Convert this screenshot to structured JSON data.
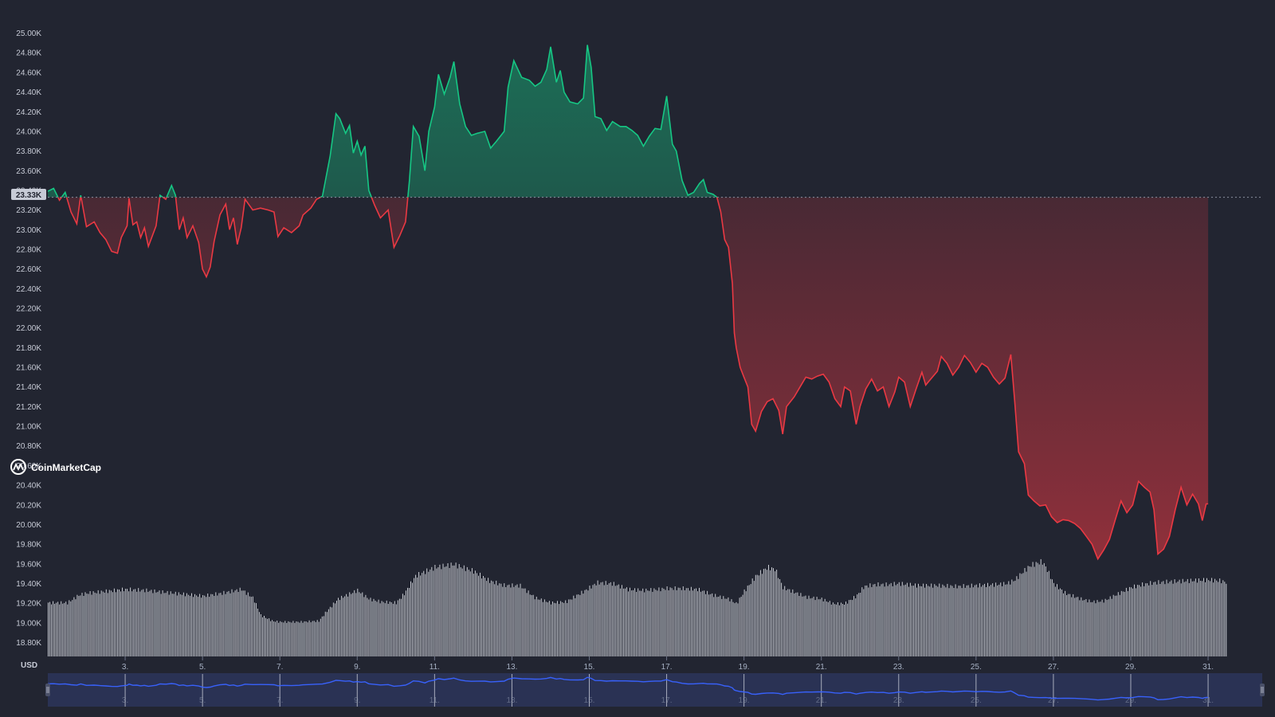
{
  "brand": {
    "watermark": "CoinMarketCap",
    "logo_icon": "coinmarketcap-logo-icon"
  },
  "colors": {
    "background": "#222531",
    "up": "#16c784",
    "down": "#ea3943",
    "volume": "#e9ecf2",
    "navigator_line": "#3861fb",
    "navigator_bg": "#2b3459"
  },
  "chart_data": {
    "type": "area",
    "currency_label": "USD",
    "current_price_label": "23.33K",
    "baseline": 23330,
    "ylim": [
      18650,
      25110
    ],
    "y_tick_labels": [
      "25.00K",
      "24.80K",
      "24.60K",
      "24.40K",
      "24.20K",
      "24.00K",
      "23.80K",
      "23.60K",
      "23.40K",
      "23.20K",
      "23.00K",
      "22.80K",
      "22.60K",
      "22.40K",
      "22.20K",
      "22.00K",
      "21.80K",
      "21.60K",
      "21.40K",
      "21.20K",
      "21.00K",
      "20.80K",
      "20.60K",
      "20.40K",
      "20.20K",
      "20.00K",
      "19.80K",
      "19.60K",
      "19.40K",
      "19.20K",
      "19.00K",
      "18.80K"
    ],
    "x_range": [
      1,
      32.4
    ],
    "x_tick_labels": [
      "3.",
      "5.",
      "7.",
      "9.",
      "11.",
      "13.",
      "15.",
      "17.",
      "19.",
      "21.",
      "23.",
      "25.",
      "27.",
      "29.",
      "31."
    ],
    "x_tick_values": [
      3,
      5,
      7,
      9,
      11,
      13,
      15,
      17,
      19,
      21,
      23,
      25,
      27,
      29,
      31
    ],
    "grid": false,
    "series": [
      {
        "values": [
          [
            1.0,
            23390
          ],
          [
            1.15,
            23420
          ],
          [
            1.3,
            23300
          ],
          [
            1.45,
            23380
          ],
          [
            1.6,
            23180
          ],
          [
            1.75,
            23060
          ],
          [
            1.85,
            23350
          ],
          [
            2.0,
            23030
          ],
          [
            2.2,
            23080
          ],
          [
            2.35,
            22970
          ],
          [
            2.5,
            22900
          ],
          [
            2.65,
            22780
          ],
          [
            2.8,
            22760
          ],
          [
            2.9,
            22920
          ],
          [
            3.05,
            23040
          ],
          [
            3.1,
            23320
          ],
          [
            3.2,
            23050
          ],
          [
            3.3,
            23080
          ],
          [
            3.4,
            22920
          ],
          [
            3.5,
            23020
          ],
          [
            3.6,
            22830
          ],
          [
            3.8,
            23040
          ],
          [
            3.9,
            23350
          ],
          [
            4.05,
            23310
          ],
          [
            4.2,
            23450
          ],
          [
            4.3,
            23350
          ],
          [
            4.4,
            23000
          ],
          [
            4.5,
            23120
          ],
          [
            4.6,
            22920
          ],
          [
            4.75,
            23040
          ],
          [
            4.9,
            22870
          ],
          [
            5.0,
            22600
          ],
          [
            5.1,
            22520
          ],
          [
            5.2,
            22620
          ],
          [
            5.3,
            22880
          ],
          [
            5.45,
            23150
          ],
          [
            5.6,
            23260
          ],
          [
            5.7,
            23000
          ],
          [
            5.8,
            23120
          ],
          [
            5.9,
            22850
          ],
          [
            6.0,
            23020
          ],
          [
            6.1,
            23310
          ],
          [
            6.3,
            23200
          ],
          [
            6.5,
            23220
          ],
          [
            6.7,
            23200
          ],
          [
            6.85,
            23180
          ],
          [
            6.95,
            22930
          ],
          [
            7.1,
            23020
          ],
          [
            7.3,
            22970
          ],
          [
            7.5,
            23040
          ],
          [
            7.6,
            23150
          ],
          [
            7.8,
            23220
          ],
          [
            7.95,
            23310
          ],
          [
            8.1,
            23340
          ],
          [
            8.3,
            23750
          ],
          [
            8.45,
            24180
          ],
          [
            8.55,
            24130
          ],
          [
            8.7,
            23980
          ],
          [
            8.8,
            24060
          ],
          [
            8.9,
            23780
          ],
          [
            9.0,
            23900
          ],
          [
            9.1,
            23760
          ],
          [
            9.2,
            23850
          ],
          [
            9.3,
            23400
          ],
          [
            9.45,
            23250
          ],
          [
            9.6,
            23120
          ],
          [
            9.8,
            23200
          ],
          [
            9.95,
            22820
          ],
          [
            10.1,
            22940
          ],
          [
            10.25,
            23080
          ],
          [
            10.35,
            23500
          ],
          [
            10.45,
            24050
          ],
          [
            10.6,
            23950
          ],
          [
            10.75,
            23600
          ],
          [
            10.85,
            24000
          ],
          [
            11.0,
            24250
          ],
          [
            11.1,
            24580
          ],
          [
            11.25,
            24380
          ],
          [
            11.4,
            24550
          ],
          [
            11.5,
            24710
          ],
          [
            11.65,
            24280
          ],
          [
            11.8,
            24050
          ],
          [
            11.95,
            23960
          ],
          [
            12.1,
            23980
          ],
          [
            12.3,
            24000
          ],
          [
            12.45,
            23830
          ],
          [
            12.6,
            23900
          ],
          [
            12.8,
            24000
          ],
          [
            12.9,
            24450
          ],
          [
            13.05,
            24720
          ],
          [
            13.25,
            24550
          ],
          [
            13.45,
            24520
          ],
          [
            13.6,
            24460
          ],
          [
            13.75,
            24500
          ],
          [
            13.9,
            24630
          ],
          [
            14.0,
            24860
          ],
          [
            14.15,
            24500
          ],
          [
            14.25,
            24620
          ],
          [
            14.35,
            24400
          ],
          [
            14.5,
            24300
          ],
          [
            14.7,
            24280
          ],
          [
            14.85,
            24340
          ],
          [
            14.95,
            24880
          ],
          [
            15.05,
            24650
          ],
          [
            15.15,
            24150
          ],
          [
            15.3,
            24130
          ],
          [
            15.45,
            24010
          ],
          [
            15.6,
            24100
          ],
          [
            15.8,
            24050
          ],
          [
            15.95,
            24050
          ],
          [
            16.1,
            24010
          ],
          [
            16.25,
            23960
          ],
          [
            16.4,
            23850
          ],
          [
            16.55,
            23950
          ],
          [
            16.7,
            24030
          ],
          [
            16.85,
            24020
          ],
          [
            17.0,
            24360
          ],
          [
            17.15,
            23870
          ],
          [
            17.25,
            23800
          ],
          [
            17.4,
            23500
          ],
          [
            17.55,
            23350
          ],
          [
            17.7,
            23380
          ],
          [
            17.85,
            23470
          ],
          [
            17.95,
            23510
          ],
          [
            18.05,
            23380
          ],
          [
            18.2,
            23360
          ],
          [
            18.3,
            23330
          ],
          [
            18.4,
            23180
          ],
          [
            18.5,
            22900
          ],
          [
            18.6,
            22820
          ],
          [
            18.7,
            22450
          ],
          [
            18.75,
            21950
          ],
          [
            18.8,
            21800
          ],
          [
            18.9,
            21600
          ],
          [
            19.0,
            21500
          ],
          [
            19.1,
            21400
          ],
          [
            19.2,
            21020
          ],
          [
            19.3,
            20950
          ],
          [
            19.45,
            21150
          ],
          [
            19.6,
            21250
          ],
          [
            19.75,
            21280
          ],
          [
            19.9,
            21160
          ],
          [
            20.0,
            20920
          ],
          [
            20.1,
            21200
          ],
          [
            20.3,
            21300
          ],
          [
            20.45,
            21400
          ],
          [
            20.6,
            21500
          ],
          [
            20.75,
            21480
          ],
          [
            20.9,
            21510
          ],
          [
            21.05,
            21530
          ],
          [
            21.2,
            21450
          ],
          [
            21.35,
            21280
          ],
          [
            21.5,
            21200
          ],
          [
            21.6,
            21400
          ],
          [
            21.75,
            21360
          ],
          [
            21.9,
            21020
          ],
          [
            22.0,
            21200
          ],
          [
            22.15,
            21380
          ],
          [
            22.3,
            21480
          ],
          [
            22.45,
            21360
          ],
          [
            22.6,
            21400
          ],
          [
            22.75,
            21200
          ],
          [
            22.9,
            21350
          ],
          [
            23.0,
            21500
          ],
          [
            23.15,
            21450
          ],
          [
            23.3,
            21200
          ],
          [
            23.45,
            21380
          ],
          [
            23.6,
            21550
          ],
          [
            23.7,
            21420
          ],
          [
            23.85,
            21490
          ],
          [
            24.0,
            21560
          ],
          [
            24.1,
            21710
          ],
          [
            24.25,
            21640
          ],
          [
            24.4,
            21520
          ],
          [
            24.55,
            21600
          ],
          [
            24.7,
            21720
          ],
          [
            24.85,
            21650
          ],
          [
            25.0,
            21550
          ],
          [
            25.15,
            21640
          ],
          [
            25.3,
            21600
          ],
          [
            25.45,
            21500
          ],
          [
            25.6,
            21430
          ],
          [
            25.75,
            21490
          ],
          [
            25.9,
            21730
          ],
          [
            26.0,
            21250
          ],
          [
            26.1,
            20740
          ],
          [
            26.25,
            20620
          ],
          [
            26.35,
            20300
          ],
          [
            26.5,
            20240
          ],
          [
            26.65,
            20190
          ],
          [
            26.8,
            20200
          ],
          [
            26.95,
            20080
          ],
          [
            27.1,
            20020
          ],
          [
            27.25,
            20050
          ],
          [
            27.4,
            20040
          ],
          [
            27.55,
            20010
          ],
          [
            27.7,
            19960
          ],
          [
            27.85,
            19880
          ],
          [
            28.0,
            19800
          ],
          [
            28.15,
            19650
          ],
          [
            28.3,
            19740
          ],
          [
            28.45,
            19850
          ],
          [
            28.6,
            20050
          ],
          [
            28.75,
            20240
          ],
          [
            28.9,
            20120
          ],
          [
            29.05,
            20200
          ],
          [
            29.2,
            20440
          ],
          [
            29.35,
            20380
          ],
          [
            29.5,
            20330
          ],
          [
            29.6,
            20150
          ],
          [
            29.7,
            19700
          ],
          [
            29.85,
            19750
          ],
          [
            30.0,
            19880
          ],
          [
            30.15,
            20150
          ],
          [
            30.3,
            20380
          ],
          [
            30.45,
            20200
          ],
          [
            30.6,
            20310
          ],
          [
            30.75,
            20210
          ],
          [
            30.85,
            20040
          ],
          [
            30.95,
            20210
          ],
          [
            31.0,
            20210
          ]
        ]
      }
    ],
    "volume_envelope": [
      [
        1.0,
        0.56
      ],
      [
        1.5,
        0.56
      ],
      [
        1.8,
        0.64
      ],
      [
        2.0,
        0.66
      ],
      [
        2.5,
        0.68
      ],
      [
        3.0,
        0.7
      ],
      [
        3.5,
        0.69
      ],
      [
        4.0,
        0.67
      ],
      [
        4.5,
        0.65
      ],
      [
        5.0,
        0.63
      ],
      [
        5.5,
        0.66
      ],
      [
        6.0,
        0.7
      ],
      [
        6.3,
        0.61
      ],
      [
        6.5,
        0.43
      ],
      [
        6.8,
        0.37
      ],
      [
        7.0,
        0.36
      ],
      [
        7.5,
        0.36
      ],
      [
        8.0,
        0.37
      ],
      [
        8.2,
        0.47
      ],
      [
        8.5,
        0.6
      ],
      [
        9.0,
        0.69
      ],
      [
        9.3,
        0.6
      ],
      [
        9.6,
        0.57
      ],
      [
        10.0,
        0.56
      ],
      [
        10.2,
        0.65
      ],
      [
        10.5,
        0.84
      ],
      [
        11.0,
        0.93
      ],
      [
        11.5,
        0.96
      ],
      [
        12.0,
        0.89
      ],
      [
        12.4,
        0.79
      ],
      [
        12.8,
        0.74
      ],
      [
        13.2,
        0.74
      ],
      [
        13.6,
        0.61
      ],
      [
        14.0,
        0.56
      ],
      [
        14.4,
        0.57
      ],
      [
        14.6,
        0.62
      ],
      [
        14.9,
        0.69
      ],
      [
        15.2,
        0.77
      ],
      [
        15.6,
        0.76
      ],
      [
        16.0,
        0.7
      ],
      [
        16.4,
        0.69
      ],
      [
        16.8,
        0.7
      ],
      [
        17.0,
        0.71
      ],
      [
        17.4,
        0.71
      ],
      [
        17.8,
        0.7
      ],
      [
        18.2,
        0.64
      ],
      [
        18.6,
        0.6
      ],
      [
        18.8,
        0.55
      ],
      [
        19.0,
        0.68
      ],
      [
        19.3,
        0.84
      ],
      [
        19.6,
        0.93
      ],
      [
        19.8,
        0.91
      ],
      [
        20.0,
        0.72
      ],
      [
        20.3,
        0.67
      ],
      [
        20.6,
        0.62
      ],
      [
        21.0,
        0.6
      ],
      [
        21.3,
        0.55
      ],
      [
        21.6,
        0.55
      ],
      [
        21.9,
        0.63
      ],
      [
        22.1,
        0.73
      ],
      [
        22.4,
        0.75
      ],
      [
        22.7,
        0.75
      ],
      [
        23.0,
        0.76
      ],
      [
        23.5,
        0.74
      ],
      [
        24.0,
        0.74
      ],
      [
        24.5,
        0.73
      ],
      [
        25.0,
        0.74
      ],
      [
        25.5,
        0.75
      ],
      [
        25.8,
        0.76
      ],
      [
        26.0,
        0.8
      ],
      [
        26.2,
        0.88
      ],
      [
        26.4,
        0.95
      ],
      [
        26.7,
        0.99
      ],
      [
        26.8,
        0.93
      ],
      [
        27.0,
        0.76
      ],
      [
        27.3,
        0.66
      ],
      [
        27.7,
        0.6
      ],
      [
        28.0,
        0.57
      ],
      [
        28.3,
        0.58
      ],
      [
        28.6,
        0.64
      ],
      [
        29.0,
        0.72
      ],
      [
        29.3,
        0.75
      ],
      [
        29.6,
        0.77
      ],
      [
        30.0,
        0.78
      ],
      [
        30.5,
        0.79
      ],
      [
        31.0,
        0.8
      ],
      [
        31.3,
        0.79
      ],
      [
        31.5,
        0.77
      ]
    ]
  }
}
